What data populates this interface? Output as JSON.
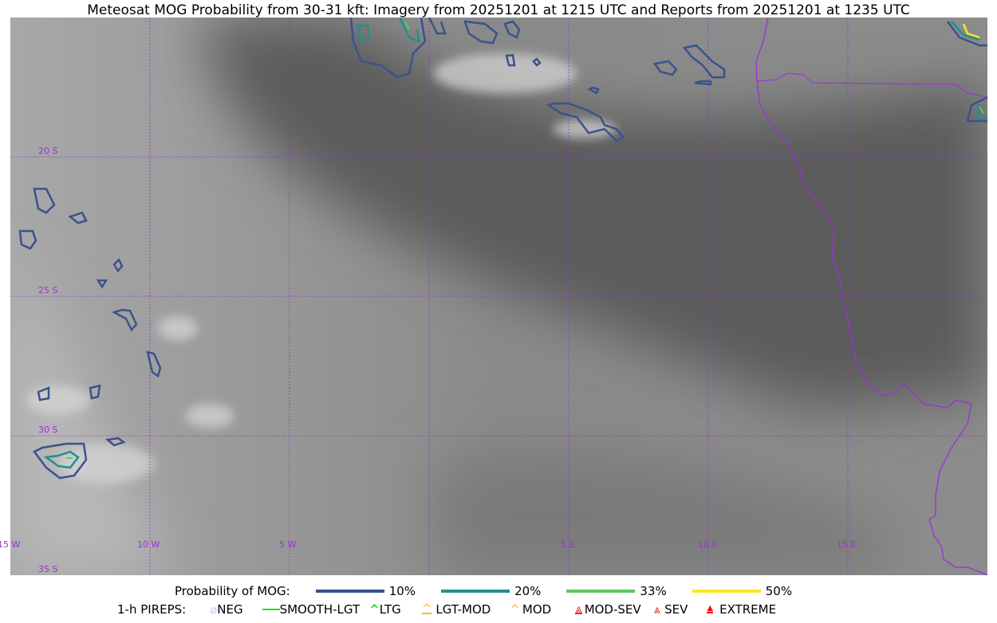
{
  "title": "Meteosat MOG Probability from 30-31 kft: Imagery from 20251201 at 1215 UTC and Reports from 20251201 at 1235 UTC",
  "map": {
    "lat_labels": [
      "20 S",
      "25 S",
      "30 S",
      "35 S"
    ],
    "lon_labels": [
      "15 W",
      "10 W",
      "5 W",
      "5 E",
      "10 E",
      "15 E"
    ],
    "gridline_color": "#9b30d9",
    "coastline_color": "#9b30d9"
  },
  "legend": {
    "probability_title": "Probability of MOG:",
    "probability_levels": [
      {
        "label": "10%",
        "color": "#3b528b"
      },
      {
        "label": "20%",
        "color": "#21908d"
      },
      {
        "label": "33%",
        "color": "#5ec962"
      },
      {
        "label": "50%",
        "color": "#fde725"
      }
    ],
    "pireps_title": "1-h PIREPS:",
    "pireps": [
      {
        "label": "NEG",
        "icon": "neg-circle-slash-icon",
        "color": "#c8c8f0"
      },
      {
        "label": "SMOOTH-LGT",
        "icon": "line-icon",
        "color": "#22dd22"
      },
      {
        "label": "LTG",
        "icon": "caret-icon",
        "color": "#00ee00"
      },
      {
        "label": "LGT-MOD",
        "icon": "caret-bar-icon",
        "color": "#fbb829"
      },
      {
        "label": "MOD",
        "icon": "caret-icon",
        "color": "#fbb829"
      },
      {
        "label": "MOD-SEV",
        "icon": "double-caret-bar-icon",
        "color": "#f03030"
      },
      {
        "label": "SEV",
        "icon": "double-caret-icon",
        "color": "#f03030"
      },
      {
        "label": "EXTREME",
        "icon": "filled-triangle-icon",
        "color": "#f01010"
      }
    ]
  }
}
